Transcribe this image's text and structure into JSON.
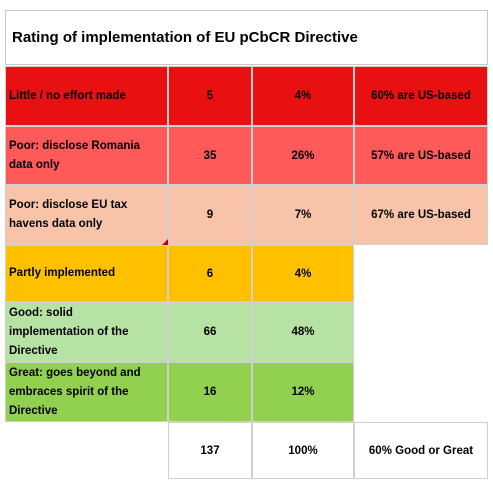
{
  "title": "Rating of implementation of EU pCbCR Directive",
  "rows": [
    {
      "label": "Little / no effort made",
      "count": "5",
      "percent": "4%",
      "note": "60% are US-based",
      "color": "#e81010"
    },
    {
      "label": "Poor: disclose Romania\ndata only",
      "count": "35",
      "percent": "26%",
      "note": "57% are US-based",
      "color": "#ff5a5a"
    },
    {
      "label": "Poor: disclose EU tax\nhavens data only",
      "count": "9",
      "percent": "7%",
      "note": "67% are US-based",
      "color": "#f7c4aa"
    },
    {
      "label": "Partly implemented",
      "count": "6",
      "percent": "4%",
      "note": "",
      "color": "#ffc000"
    },
    {
      "label": "Good: solid\nimplementation of the\nDirective",
      "count": "66",
      "percent": "48%",
      "note": "",
      "color": "#b6e3a4"
    },
    {
      "label": "Great: goes beyond and\nembraces spirit of the\nDirective",
      "count": "16",
      "percent": "12%",
      "note": "",
      "color": "#92d050"
    }
  ],
  "totals": {
    "count": "137",
    "percent": "100%",
    "note": "60% Good or Great"
  }
}
